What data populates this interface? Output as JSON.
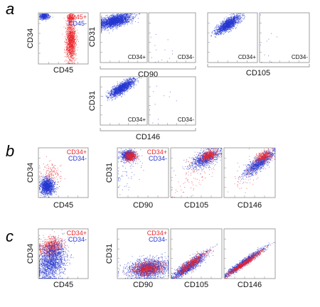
{
  "colors": {
    "positive": "#e8262b",
    "negative": "#2637d0"
  },
  "chart_data": [
    {
      "type": "scatter",
      "id": "a-cd34-cd45",
      "panel_letter": "a",
      "xlabel": "CD45",
      "ylabel": "CD34",
      "legend": [
        "CD45+",
        "CD45-"
      ],
      "legend_position": "top-right",
      "series": [
        {
          "name": "CD45+",
          "color": "#e8262b",
          "clusters": [
            {
              "x": 0.65,
              "y": 0.45,
              "sx": 0.05,
              "sy": 0.2,
              "n": 1300,
              "corr": 0
            },
            {
              "x": 0.65,
              "y": 0.92,
              "sx": 0.04,
              "sy": 0.04,
              "n": 200,
              "corr": 0
            }
          ]
        },
        {
          "name": "CD45-",
          "color": "#2637d0",
          "clusters": [
            {
              "x": 0.1,
              "y": 0.95,
              "sx": 0.05,
              "sy": 0.03,
              "n": 400,
              "corr": 0
            }
          ]
        }
      ],
      "xlim": [
        0,
        1
      ],
      "ylim": [
        0,
        1
      ]
    },
    {
      "type": "scatter",
      "id": "a-cd31-cd90",
      "xlabel": "CD90",
      "ylabel": "CD31",
      "subpanels": [
        {
          "label": "CD34+",
          "series": [
            {
              "color": "#2637d0",
              "clusters": [
                {
                  "x": 0.3,
                  "y": 0.85,
                  "sx": 0.17,
                  "sy": 0.07,
                  "n": 2200,
                  "corr": 0.55
                }
              ]
            }
          ]
        },
        {
          "label": "CD34-",
          "series": [
            {
              "color": "#2637d0",
              "clusters": [
                {
                  "x": 0.2,
                  "y": 0.3,
                  "sx": 0.2,
                  "sy": 0.25,
                  "n": 12,
                  "corr": 0
                }
              ]
            }
          ]
        }
      ],
      "xlim": [
        0,
        1
      ],
      "ylim": [
        0,
        1
      ]
    },
    {
      "type": "scatter",
      "id": "a-cd31-cd105",
      "xlabel": "CD105",
      "ylabel": "",
      "subpanels": [
        {
          "label": "CD34+",
          "series": [
            {
              "color": "#2637d0",
              "clusters": [
                {
                  "x": 0.4,
                  "y": 0.78,
                  "sx": 0.12,
                  "sy": 0.09,
                  "n": 1600,
                  "corr": 0.75
                }
              ]
            }
          ]
        },
        {
          "label": "CD34-",
          "series": [
            {
              "color": "#2637d0",
              "clusters": [
                {
                  "x": 0.15,
                  "y": 0.3,
                  "sx": 0.12,
                  "sy": 0.25,
                  "n": 10,
                  "corr": 0
                }
              ]
            }
          ]
        }
      ],
      "xlim": [
        0,
        1
      ],
      "ylim": [
        0,
        1
      ]
    },
    {
      "type": "scatter",
      "id": "a-cd31-cd146",
      "xlabel": "CD146",
      "ylabel": "CD31",
      "subpanels": [
        {
          "label": "CD34+",
          "series": [
            {
              "color": "#2637d0",
              "clusters": [
                {
                  "x": 0.45,
                  "y": 0.78,
                  "sx": 0.13,
                  "sy": 0.09,
                  "n": 1600,
                  "corr": 0.78
                }
              ]
            }
          ]
        },
        {
          "label": "CD34-",
          "series": [
            {
              "color": "#2637d0",
              "clusters": [
                {
                  "x": 0.2,
                  "y": 0.35,
                  "sx": 0.15,
                  "sy": 0.25,
                  "n": 10,
                  "corr": 0
                }
              ]
            }
          ]
        }
      ],
      "xlim": [
        0,
        1
      ],
      "ylim": [
        0,
        1
      ]
    },
    {
      "type": "scatter",
      "id": "b-cd34-cd45",
      "panel_letter": "b",
      "xlabel": "CD45",
      "ylabel": "CD34",
      "legend": [
        "CD34+",
        "CD34-"
      ],
      "legend_position": "top-right",
      "series": [
        {
          "name": "CD34+",
          "color": "#e8262b",
          "clusters": [
            {
              "x": 0.25,
              "y": 0.5,
              "sx": 0.1,
              "sy": 0.12,
              "n": 150,
              "corr": 0
            }
          ]
        },
        {
          "name": "CD34-",
          "color": "#2637d0",
          "clusters": [
            {
              "x": 0.16,
              "y": 0.22,
              "sx": 0.07,
              "sy": 0.08,
              "n": 1300,
              "corr": 0
            }
          ]
        }
      ],
      "xlim": [
        0,
        1
      ],
      "ylim": [
        0,
        1
      ]
    },
    {
      "type": "scatter",
      "id": "b-cd31-cd90",
      "xlabel": "CD90",
      "ylabel": "CD31",
      "legend": [
        "CD34+",
        "CD34-"
      ],
      "legend_position": "top-right",
      "series": [
        {
          "name": "CD34-",
          "color": "#2637d0",
          "clusters": [
            {
              "x": 0.2,
              "y": 0.86,
              "sx": 0.07,
              "sy": 0.05,
              "n": 1000,
              "corr": 0
            },
            {
              "x": 0.2,
              "y": 0.55,
              "sx": 0.15,
              "sy": 0.2,
              "n": 60,
              "corr": 0.4
            }
          ]
        },
        {
          "name": "CD34+",
          "color": "#e8262b",
          "clusters": [
            {
              "x": 0.25,
              "y": 0.85,
              "sx": 0.06,
              "sy": 0.05,
              "n": 400,
              "corr": 0
            }
          ]
        }
      ],
      "xlim": [
        0,
        1
      ],
      "ylim": [
        0,
        1
      ]
    },
    {
      "type": "scatter",
      "id": "b-cd31-cd105",
      "xlabel": "CD105",
      "ylabel": "",
      "series": [
        {
          "name": "CD34-",
          "color": "#2637d0",
          "clusters": [
            {
              "x": 0.68,
              "y": 0.8,
              "sx": 0.14,
              "sy": 0.1,
              "n": 1000,
              "corr": 0.6
            }
          ]
        },
        {
          "name": "CD34+",
          "color": "#e8262b",
          "clusters": [
            {
              "x": 0.75,
              "y": 0.86,
              "sx": 0.08,
              "sy": 0.05,
              "n": 400,
              "corr": 0.4
            },
            {
              "x": 0.45,
              "y": 0.45,
              "sx": 0.25,
              "sy": 0.25,
              "n": 100,
              "corr": 0.7
            }
          ]
        }
      ],
      "xlim": [
        0,
        1
      ],
      "ylim": [
        0,
        1
      ]
    },
    {
      "type": "scatter",
      "id": "b-cd31-cd146",
      "xlabel": "CD146",
      "ylabel": "",
      "series": [
        {
          "name": "CD34-",
          "color": "#2637d0",
          "clusters": [
            {
              "x": 0.68,
              "y": 0.7,
              "sx": 0.15,
              "sy": 0.13,
              "n": 1100,
              "corr": 0.85
            }
          ]
        },
        {
          "name": "CD34+",
          "color": "#e8262b",
          "clusters": [
            {
              "x": 0.78,
              "y": 0.85,
              "sx": 0.08,
              "sy": 0.06,
              "n": 350,
              "corr": 0.5
            },
            {
              "x": 0.5,
              "y": 0.5,
              "sx": 0.25,
              "sy": 0.25,
              "n": 80,
              "corr": 0.8
            }
          ]
        }
      ],
      "xlim": [
        0,
        1
      ],
      "ylim": [
        0,
        1
      ]
    },
    {
      "type": "scatter",
      "id": "c-cd34-cd45",
      "panel_letter": "c",
      "xlabel": "CD45",
      "ylabel": "CD34",
      "legend": [
        "CD34+",
        "CD34-"
      ],
      "legend_position": "top-right",
      "series": [
        {
          "name": "CD34+",
          "color": "#e8262b",
          "clusters": [
            {
              "x": 0.25,
              "y": 0.65,
              "sx": 0.12,
              "sy": 0.1,
              "n": 700,
              "corr": 0.2
            }
          ]
        },
        {
          "name": "CD34-",
          "color": "#2637d0",
          "clusters": [
            {
              "x": 0.25,
              "y": 0.35,
              "sx": 0.15,
              "sy": 0.2,
              "n": 1700,
              "corr": 0.3
            }
          ]
        }
      ],
      "xlim": [
        0,
        1
      ],
      "ylim": [
        0,
        1
      ]
    },
    {
      "type": "scatter",
      "id": "c-cd31-cd90",
      "xlabel": "CD90",
      "ylabel": "CD31",
      "legend": [
        "CD34+",
        "CD34-"
      ],
      "legend_position": "top-right",
      "series": [
        {
          "name": "CD34-",
          "color": "#2637d0",
          "clusters": [
            {
              "x": 0.6,
              "y": 0.2,
              "sx": 0.2,
              "sy": 0.1,
              "n": 1700,
              "corr": 0.2
            }
          ]
        },
        {
          "name": "CD34+",
          "color": "#e8262b",
          "clusters": [
            {
              "x": 0.6,
              "y": 0.2,
              "sx": 0.14,
              "sy": 0.07,
              "n": 700,
              "corr": 0.2
            }
          ]
        }
      ],
      "xlim": [
        0,
        1
      ],
      "ylim": [
        0,
        1
      ]
    },
    {
      "type": "scatter",
      "id": "c-cd31-cd105",
      "xlabel": "CD105",
      "ylabel": "",
      "series": [
        {
          "name": "CD34-",
          "color": "#2637d0",
          "clusters": [
            {
              "x": 0.35,
              "y": 0.25,
              "sx": 0.18,
              "sy": 0.14,
              "n": 1300,
              "corr": 0.9
            }
          ]
        },
        {
          "name": "CD34+",
          "color": "#e8262b",
          "clusters": [
            {
              "x": 0.4,
              "y": 0.3,
              "sx": 0.15,
              "sy": 0.12,
              "n": 500,
              "corr": 0.9
            }
          ]
        }
      ],
      "xlim": [
        0,
        1
      ],
      "ylim": [
        0,
        1
      ]
    },
    {
      "type": "scatter",
      "id": "c-cd31-cd146",
      "xlabel": "CD146",
      "ylabel": "",
      "series": [
        {
          "name": "CD34-",
          "color": "#2637d0",
          "clusters": [
            {
              "x": 0.35,
              "y": 0.3,
              "sx": 0.2,
              "sy": 0.15,
              "n": 1200,
              "corr": 0.97
            }
          ]
        },
        {
          "name": "CD34+",
          "color": "#e8262b",
          "clusters": [
            {
              "x": 0.38,
              "y": 0.3,
              "sx": 0.17,
              "sy": 0.12,
              "n": 600,
              "corr": 0.97
            }
          ]
        }
      ],
      "xlim": [
        0,
        1
      ],
      "ylim": [
        0,
        1
      ]
    }
  ]
}
